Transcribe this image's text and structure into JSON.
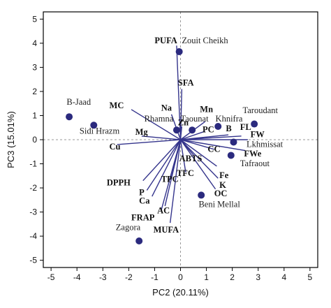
{
  "chart_data": {
    "type": "scatter",
    "subtype": "pca-biplot",
    "title": "",
    "xlabel": "PC2 (20.11%)",
    "ylabel": "PC3 (15.01%)",
    "xlim": [
      -5.3,
      5.3
    ],
    "ylim": [
      -5.3,
      5.3
    ],
    "xticks": [
      -5,
      -4,
      -3,
      -2,
      -1,
      0,
      1,
      2,
      3,
      4,
      5
    ],
    "yticks": [
      -5,
      -4,
      -3,
      -2,
      -1,
      0,
      1,
      2,
      3,
      4,
      5
    ],
    "grid": false,
    "reference_lines": {
      "x": 0,
      "y": 0,
      "style": "dashed"
    },
    "colors": {
      "point": "#2b2a7e",
      "vector": "#34348c",
      "axis": "#000000",
      "refline": "#999999"
    },
    "sites": [
      {
        "name": "Zouit Cheikh",
        "x": -0.05,
        "y": 3.65,
        "lx": 0.05,
        "ly": 4.0
      },
      {
        "name": "B-Jaad",
        "x": -4.3,
        "y": 0.95,
        "lx": -4.4,
        "ly": 1.45
      },
      {
        "name": "Sidi Hrazm",
        "x": -3.35,
        "y": 0.6,
        "lx": -3.9,
        "ly": 0.25
      },
      {
        "name": "Rhamna",
        "x": -0.15,
        "y": 0.4,
        "lx": -1.4,
        "ly": 0.75
      },
      {
        "name": "Taounat",
        "x": 0.45,
        "y": 0.4,
        "lx": 0.0,
        "ly": 0.75
      },
      {
        "name": "Khnifra",
        "x": 1.45,
        "y": 0.55,
        "lx": 1.35,
        "ly": 0.75
      },
      {
        "name": "Taroudant",
        "x": 2.85,
        "y": 0.65,
        "lx": 2.4,
        "ly": 1.1
      },
      {
        "name": "Lkhmissat",
        "x": 2.05,
        "y": -0.1,
        "lx": 2.55,
        "ly": -0.3
      },
      {
        "name": "Tafraout",
        "x": 1.95,
        "y": -0.65,
        "lx": 2.3,
        "ly": -1.1
      },
      {
        "name": "Beni Mellal",
        "x": 0.8,
        "y": -2.3,
        "lx": 0.7,
        "ly": -2.8
      },
      {
        "name": "Zagora",
        "x": -1.6,
        "y": -4.2,
        "lx": -2.5,
        "ly": -3.75
      }
    ],
    "variables": [
      {
        "name": "PUFA",
        "x": -0.15,
        "y": 3.9,
        "lx": -1.0,
        "ly": 4.0
      },
      {
        "name": "SFA",
        "x": 0.05,
        "y": 2.1,
        "lx": -0.1,
        "ly": 2.25
      },
      {
        "name": "Na",
        "x": -0.35,
        "y": 1.05,
        "lx": -0.75,
        "ly": 1.2
      },
      {
        "name": "Zn",
        "x": 0.05,
        "y": 0.55,
        "lx": -0.1,
        "ly": 0.6
      },
      {
        "name": "Mn",
        "x": 0.95,
        "y": 0.75,
        "lx": 0.75,
        "ly": 1.15
      },
      {
        "name": "PC",
        "x": 0.95,
        "y": 0.35,
        "lx": 0.85,
        "ly": 0.3
      },
      {
        "name": "B",
        "x": 1.85,
        "y": 0.2,
        "lx": 1.75,
        "ly": 0.35
      },
      {
        "name": "FL",
        "x": 2.35,
        "y": 0.15,
        "lx": 2.3,
        "ly": 0.4
      },
      {
        "name": "FW",
        "x": 2.6,
        "y": 0.0,
        "lx": 2.7,
        "ly": 0.1
      },
      {
        "name": "FWe",
        "x": 2.5,
        "y": -0.45,
        "lx": 2.45,
        "ly": -0.7
      },
      {
        "name": "CC",
        "x": 1.3,
        "y": -0.4,
        "lx": 1.05,
        "ly": -0.5
      },
      {
        "name": "ABTS",
        "x": 0.55,
        "y": -0.7,
        "lx": -0.05,
        "ly": -0.9
      },
      {
        "name": "Fe",
        "x": 1.4,
        "y": -1.1,
        "lx": 1.5,
        "ly": -1.6
      },
      {
        "name": "K",
        "x": 1.45,
        "y": -1.6,
        "lx": 1.5,
        "ly": -2.0
      },
      {
        "name": "OC",
        "x": 1.35,
        "y": -2.05,
        "lx": 1.3,
        "ly": -2.35
      },
      {
        "name": "TFC",
        "x": 0.2,
        "y": -1.35,
        "lx": -0.15,
        "ly": -1.5
      },
      {
        "name": "TPC",
        "x": -0.35,
        "y": -1.55,
        "lx": -0.75,
        "ly": -1.75
      },
      {
        "name": "MC",
        "x": -1.9,
        "y": 1.25,
        "lx": -2.75,
        "ly": 1.3
      },
      {
        "name": "Mg",
        "x": -1.5,
        "y": 0.15,
        "lx": -1.75,
        "ly": 0.2
      },
      {
        "name": "Cu",
        "x": -2.45,
        "y": -0.2,
        "lx": -2.75,
        "ly": -0.4
      },
      {
        "name": "DPPH",
        "x": -1.45,
        "y": -1.7,
        "lx": -2.85,
        "ly": -1.9
      },
      {
        "name": "P",
        "x": -1.3,
        "y": -2.1,
        "lx": -1.6,
        "ly": -2.3
      },
      {
        "name": "Ca",
        "x": -1.1,
        "y": -2.35,
        "lx": -1.6,
        "ly": -2.65
      },
      {
        "name": "AC",
        "x": -0.6,
        "y": -2.75,
        "lx": -0.9,
        "ly": -3.05
      },
      {
        "name": "FRAP",
        "x": -0.75,
        "y": -2.95,
        "lx": -1.9,
        "ly": -3.35
      },
      {
        "name": "MUFA",
        "x": -0.4,
        "y": -3.45,
        "lx": -1.05,
        "ly": -3.85
      }
    ]
  }
}
